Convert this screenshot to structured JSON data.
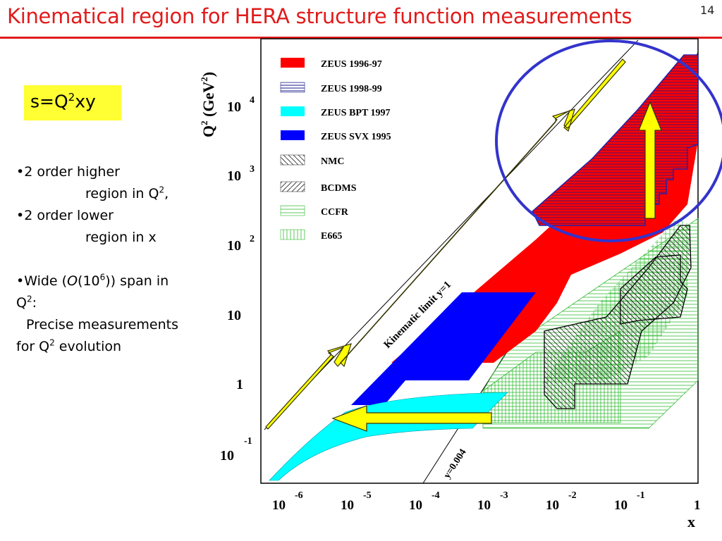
{
  "slide": {
    "title": "Kinematical region for HERA structure function measurements",
    "number": "14"
  },
  "formula": {
    "s": "s=Q",
    "exp": "2",
    "rest": "xy"
  },
  "bullets": {
    "b1_line1": "•2 order higher",
    "b1_line2": "region in Q",
    "b1_sup": "2",
    "b1_tail": ",",
    "b2_line1": "•2 order lower",
    "b2_line2": "region in x",
    "b3_line1_pre": "•Wide (",
    "b3_O": "O",
    "b3_mid": "(10",
    "b3_sup": "6",
    "b3_post": ")) span in",
    "b3_line2": "Q",
    "b3_line2_sup": "2",
    "b3_line2_tail": ":",
    "b3_line3": "Precise measurements",
    "b3_line4_pre": "for Q",
    "b3_line4_sup": "2",
    "b3_line4_post": " evolution"
  },
  "figure": {
    "y_axis_label": {
      "main": "Q",
      "sup": "2",
      "unit": " (GeV",
      "unit_sup": "2",
      "close": ")"
    },
    "x_axis_label": "x",
    "x_ticks": [
      {
        "base": "10",
        "exp": "-6"
      },
      {
        "base": "10",
        "exp": "-5"
      },
      {
        "base": "10",
        "exp": "-4"
      },
      {
        "base": "10",
        "exp": "-3"
      },
      {
        "base": "10",
        "exp": "-2"
      },
      {
        "base": "10",
        "exp": "-1"
      },
      {
        "base": "1",
        "exp": ""
      }
    ],
    "y_ticks": [
      {
        "base": "10",
        "exp": "-1"
      },
      {
        "base": "1",
        "exp": ""
      },
      {
        "base": "10",
        "exp": ""
      },
      {
        "base": "10",
        "exp": "2"
      },
      {
        "base": "10",
        "exp": "3"
      },
      {
        "base": "10",
        "exp": "4"
      }
    ],
    "kinematic_label": "Kinematic limit  y=1",
    "y_low_label": "y=0.004",
    "legend": [
      {
        "label": "ZEUS 1996-97",
        "color": "#ff0000",
        "pattern": "solid"
      },
      {
        "label": "ZEUS 1998-99",
        "color": "#000080",
        "pattern": "hlines"
      },
      {
        "label": "ZEUS BPT 1997",
        "color": "#00ffff",
        "pattern": "solid"
      },
      {
        "label": "ZEUS SVX 1995",
        "color": "#0000ff",
        "pattern": "solid"
      },
      {
        "label": "NMC",
        "color": "#000000",
        "pattern": "diag"
      },
      {
        "label": "BCDMS",
        "color": "#000000",
        "pattern": "diag2"
      },
      {
        "label": "CCFR",
        "color": "#00aa00",
        "pattern": "hlines"
      },
      {
        "label": "E665",
        "color": "#00aa00",
        "pattern": "vlines"
      }
    ],
    "annotation_colors": {
      "arrow_fill": "#ffff00",
      "arrow_stroke": "#333300",
      "circle": "#3333cc"
    }
  }
}
